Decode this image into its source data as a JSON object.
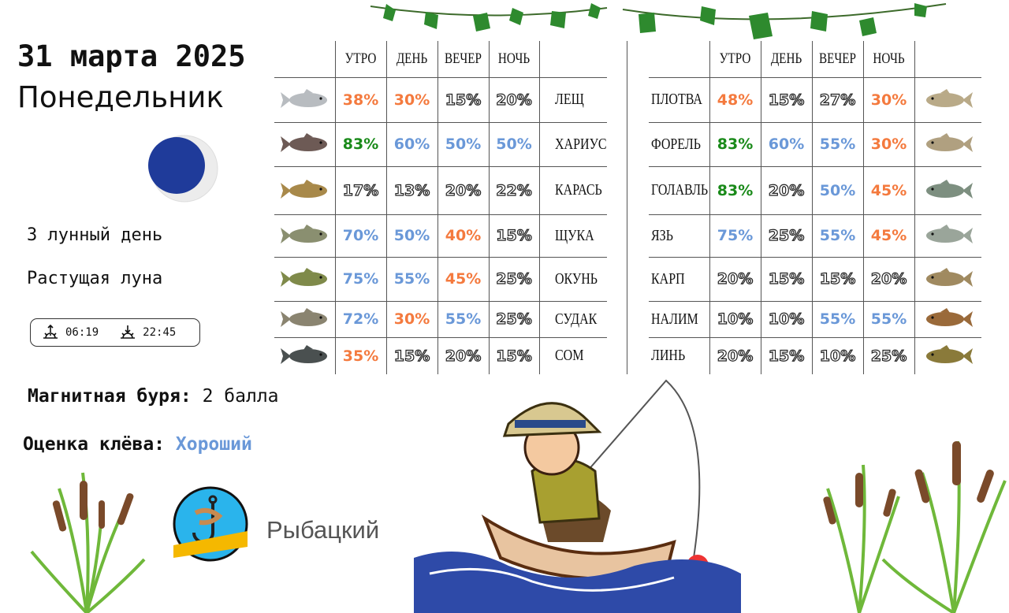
{
  "header": {
    "date": "31 марта 2025",
    "weekday": "Понедельник"
  },
  "moon": {
    "lunar_day": "3 лунный день",
    "phase": "Растущая луна",
    "color": "#1f3b9a"
  },
  "sun": {
    "sunrise": "06:19",
    "sunset": "22:45",
    "sunrise_icon": "sunrise-icon",
    "sunset_icon": "sunset-icon"
  },
  "storm": {
    "label": "Магнитная буря:",
    "value": "2 балла"
  },
  "bite": {
    "label": "Оценка клёва:",
    "value": "Хороший"
  },
  "brand": {
    "name": "Рыбацкий",
    "logo_text": "РЫБАЦКИЙ"
  },
  "colors": {
    "orange": "#f47a3e",
    "green": "#1a8a1a",
    "blue": "#6a98d8",
    "outline": "#222222"
  },
  "columns": [
    "УТРО",
    "ДЕНЬ",
    "ВЕЧЕР",
    "НОЧЬ"
  ],
  "left_table": [
    {
      "name": "ЛЕЩ",
      "fish": "#b8bcc0",
      "values": [
        [
          "38%",
          "orange"
        ],
        [
          "30%",
          "orange"
        ],
        [
          "15%",
          "outline"
        ],
        [
          "20%",
          "outline"
        ]
      ]
    },
    {
      "name": "ХАРИУС",
      "fish": "#6d5a55",
      "values": [
        [
          "83%",
          "green"
        ],
        [
          "60%",
          "blue"
        ],
        [
          "50%",
          "blue"
        ],
        [
          "50%",
          "blue"
        ]
      ]
    },
    {
      "name": "КАРАСЬ",
      "fish": "#a8894a",
      "values": [
        [
          "17%",
          "outline"
        ],
        [
          "13%",
          "outline"
        ],
        [
          "20%",
          "outline"
        ],
        [
          "22%",
          "outline"
        ]
      ]
    },
    {
      "name": "ЩУКА",
      "fish": "#8a8f70",
      "values": [
        [
          "70%",
          "blue"
        ],
        [
          "50%",
          "blue"
        ],
        [
          "40%",
          "orange"
        ],
        [
          "15%",
          "outline"
        ]
      ]
    },
    {
      "name": "ОКУНЬ",
      "fish": "#7f8a4a",
      "values": [
        [
          "75%",
          "blue"
        ],
        [
          "55%",
          "blue"
        ],
        [
          "45%",
          "orange"
        ],
        [
          "25%",
          "outline"
        ]
      ]
    },
    {
      "name": "СУДАК",
      "fish": "#8a8470",
      "values": [
        [
          "72%",
          "blue"
        ],
        [
          "30%",
          "orange"
        ],
        [
          "55%",
          "blue"
        ],
        [
          "25%",
          "outline"
        ]
      ]
    },
    {
      "name": "СОМ",
      "fish": "#4a5050",
      "values": [
        [
          "35%",
          "orange"
        ],
        [
          "15%",
          "outline"
        ],
        [
          "20%",
          "outline"
        ],
        [
          "15%",
          "outline"
        ]
      ]
    }
  ],
  "right_table": [
    {
      "name": "ПЛОТВА",
      "fish": "#b9aa88",
      "values": [
        [
          "48%",
          "orange"
        ],
        [
          "15%",
          "outline"
        ],
        [
          "27%",
          "outline"
        ],
        [
          "30%",
          "orange"
        ]
      ]
    },
    {
      "name": "ФОРЕЛЬ",
      "fish": "#b0a080",
      "values": [
        [
          "83%",
          "green"
        ],
        [
          "60%",
          "blue"
        ],
        [
          "55%",
          "blue"
        ],
        [
          "30%",
          "orange"
        ]
      ]
    },
    {
      "name": "ГОЛАВЛЬ",
      "fish": "#7d8f80",
      "values": [
        [
          "83%",
          "green"
        ],
        [
          "20%",
          "outline"
        ],
        [
          "50%",
          "blue"
        ],
        [
          "45%",
          "orange"
        ]
      ]
    },
    {
      "name": "ЯЗЬ",
      "fish": "#9aa59a",
      "values": [
        [
          "75%",
          "blue"
        ],
        [
          "25%",
          "outline"
        ],
        [
          "55%",
          "blue"
        ],
        [
          "45%",
          "orange"
        ]
      ]
    },
    {
      "name": "КАРП",
      "fish": "#a08a60",
      "values": [
        [
          "20%",
          "outline"
        ],
        [
          "15%",
          "outline"
        ],
        [
          "15%",
          "outline"
        ],
        [
          "20%",
          "outline"
        ]
      ]
    },
    {
      "name": "НАЛИМ",
      "fish": "#9a6a3a",
      "values": [
        [
          "10%",
          "outline"
        ],
        [
          "10%",
          "outline"
        ],
        [
          "55%",
          "blue"
        ],
        [
          "55%",
          "blue"
        ]
      ]
    },
    {
      "name": "ЛИНЬ",
      "fish": "#8a7a3a",
      "values": [
        [
          "20%",
          "outline"
        ],
        [
          "15%",
          "outline"
        ],
        [
          "10%",
          "outline"
        ],
        [
          "25%",
          "outline"
        ]
      ]
    }
  ]
}
